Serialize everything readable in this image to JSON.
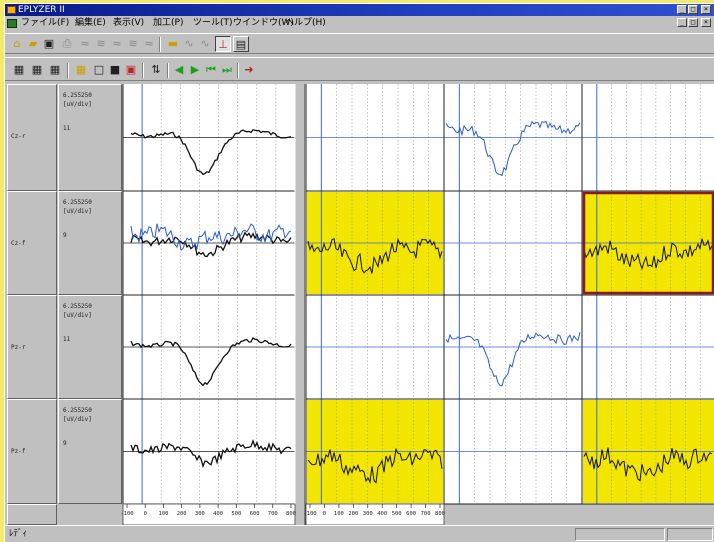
{
  "window": {
    "title": "EPLYZER II",
    "controls": [
      "_",
      "□",
      "×"
    ]
  },
  "menu": [
    "ファイル(F)",
    "編集(E)",
    "表示(V)",
    "加工(P)",
    "ツール(T)",
    "ウインドウ(W)",
    "ヘルプ(H)"
  ],
  "mdi_controls": [
    "_",
    "□",
    "×"
  ],
  "toolbar1": [
    {
      "icon": "open-folder-icon",
      "glyph": "⌂"
    },
    {
      "icon": "folder-icon",
      "glyph": "▰"
    },
    {
      "icon": "save-icon",
      "glyph": "▣"
    },
    {
      "icon": "print-icon",
      "glyph": "⎙"
    },
    {
      "icon": "wave-tool-1-icon",
      "glyph": "≈"
    },
    {
      "icon": "wave-tool-2-icon",
      "glyph": "≋"
    },
    {
      "icon": "wave-tool-3-icon",
      "glyph": "≈"
    },
    {
      "icon": "wave-tool-4-icon",
      "glyph": "≋"
    },
    {
      "icon": "wave-tool-5-icon",
      "glyph": "≈"
    },
    {
      "icon": "marker-bar-icon",
      "glyph": "▬"
    },
    {
      "icon": "cursor-wave-1-icon",
      "glyph": "∿"
    },
    {
      "icon": "cursor-wave-2-icon",
      "glyph": "∿"
    },
    {
      "icon": "baseline-cursor-icon",
      "glyph": "⊥"
    },
    {
      "icon": "table-view-icon",
      "glyph": "▤"
    }
  ],
  "toolbar2": [
    {
      "icon": "grid-small-icon",
      "glyph": "▦"
    },
    {
      "icon": "grid-medium-icon",
      "glyph": "▦"
    },
    {
      "icon": "grid-large-icon",
      "glyph": "▦"
    },
    {
      "icon": "grid-yellow-icon",
      "glyph": "▦"
    },
    {
      "icon": "blank-square-icon",
      "glyph": "□"
    },
    {
      "icon": "black-square-icon",
      "glyph": "■"
    },
    {
      "icon": "frame-square-icon",
      "glyph": "▣"
    },
    {
      "icon": "flip-icon",
      "glyph": "⇅"
    },
    {
      "icon": "play-left-icon",
      "glyph": "◀"
    },
    {
      "icon": "play-right-icon",
      "glyph": "▶"
    },
    {
      "icon": "skip-first-icon",
      "glyph": "⏮"
    },
    {
      "icon": "skip-last-icon",
      "glyph": "⏭"
    },
    {
      "icon": "go-arrow-icon",
      "glyph": "➜"
    }
  ],
  "channels": [
    {
      "name": "Cz-r",
      "scale": "6.255250",
      "unit": "[uV/div]",
      "avg": "11"
    },
    {
      "name": "Cz-f",
      "scale": "6.255250",
      "unit": "[uV/div]",
      "avg": "9"
    },
    {
      "name": "Pz-r",
      "scale": "6.255250",
      "unit": "[uV/div]",
      "avg": "11"
    },
    {
      "name": "Pz-f",
      "scale": "6.255250",
      "unit": "[uV/div]",
      "avg": "9"
    }
  ],
  "x_axis_left": {
    "ticks": [
      "-100",
      "0",
      "100",
      "200",
      "300",
      "400",
      "500",
      "600",
      "700",
      "800"
    ]
  },
  "x_axis_right": {
    "ticks": [
      "-100",
      "0",
      "100",
      "200",
      "300",
      "400",
      "500",
      "600",
      "700",
      "800"
    ]
  },
  "colors": {
    "highlight": "#f2e600",
    "trace_black": "#101010",
    "trace_blue": "#2a5ccc",
    "baseline_blue": "#3a6ad8",
    "selection_border": "#8a1a1a"
  },
  "status": {
    "text": "ﾚﾃﾞｨ"
  }
}
